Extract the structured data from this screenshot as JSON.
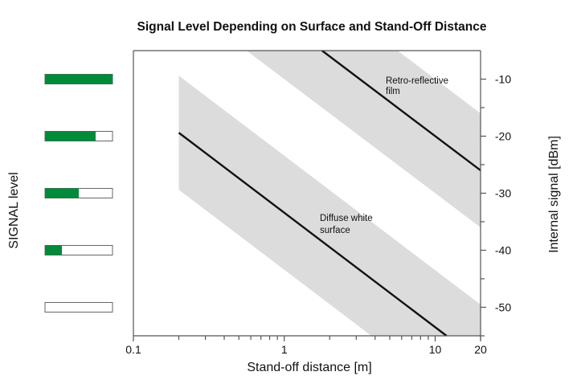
{
  "chart_data": {
    "type": "line",
    "title": "Signal Level Depending on Surface and Stand-Off Distance",
    "xlabel": "Stand-off distance [m]",
    "ylabel_right": "Internal signal [dBm]",
    "ylabel_left": "SIGNAL level",
    "x_scale": "log",
    "xlim": [
      0.1,
      20
    ],
    "ylim": [
      -55,
      -5
    ],
    "x_ticks": [
      0.1,
      1,
      10,
      20
    ],
    "x_tick_labels": [
      "0.1",
      "1",
      "10",
      "20"
    ],
    "y_ticks": [
      -10,
      -20,
      -30,
      -40,
      -50
    ],
    "y_tick_labels": [
      "-10",
      "-20",
      "-30",
      "-40",
      "-50"
    ],
    "grid": false,
    "band_color": "#dcdcdc",
    "line_color": "#111111",
    "series": [
      {
        "name": "Retro-reflective film",
        "label_lines": [
          "Retro-reflective",
          "film"
        ],
        "x": [
          1.8,
          20
        ],
        "y": [
          -5.1,
          -26
        ],
        "band_halfwidth_db": 10
      },
      {
        "name": "Diffuse white surface",
        "label_lines": [
          "Diffuse white",
          "surface"
        ],
        "x": [
          0.2,
          11.9
        ],
        "y": [
          -19.4,
          -55
        ],
        "band_start_x": 0.2,
        "band_halfwidth_db": 10
      }
    ],
    "signal_level_bars": {
      "color": "#008a3a",
      "levels_dbm": [
        -10,
        -20,
        -30,
        -40,
        -50
      ],
      "fill_fraction": [
        1.0,
        0.75,
        0.5,
        0.25,
        0.0
      ]
    }
  }
}
